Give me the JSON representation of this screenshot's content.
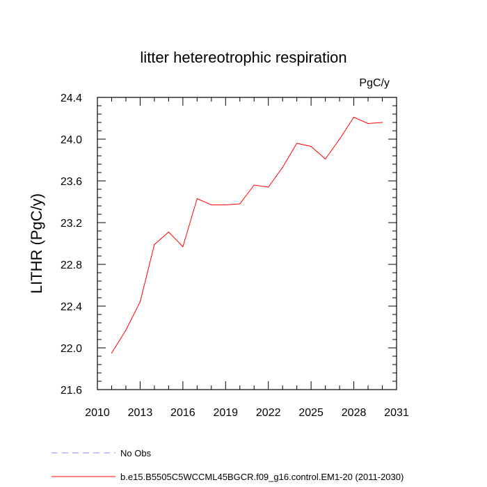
{
  "chart_data": {
    "type": "line",
    "title": "litter hetereotrophic respiration",
    "units": "PgC/y",
    "ylabel": "LITHR  (PgC/y)",
    "xlabel": "",
    "xlim": [
      2010,
      2031
    ],
    "ylim": [
      21.6,
      24.4
    ],
    "xticks": [
      2010,
      2013,
      2016,
      2019,
      2022,
      2025,
      2028,
      2031
    ],
    "yticks": [
      21.6,
      22.0,
      22.4,
      22.8,
      23.2,
      23.6,
      24.0,
      24.4
    ],
    "xtick_labels": [
      "2010",
      "2013",
      "2016",
      "2019",
      "2022",
      "2025",
      "2028",
      "2031"
    ],
    "ytick_labels": [
      "21.6",
      "22.0",
      "22.4",
      "22.8",
      "23.2",
      "23.6",
      "24.0",
      "24.4"
    ],
    "series": [
      {
        "name": "b.e15.B5505C5WCCML45BGCR.f09_g16.control.EM1-20 (2011-2030)",
        "color": "#ff0000",
        "style": "solid",
        "x": [
          2011,
          2012,
          2013,
          2014,
          2015,
          2016,
          2017,
          2018,
          2019,
          2020,
          2021,
          2022,
          2023,
          2024,
          2025,
          2026,
          2027,
          2028,
          2029,
          2030
        ],
        "values": [
          21.95,
          22.17,
          22.44,
          22.99,
          23.11,
          22.97,
          23.43,
          23.37,
          23.37,
          23.38,
          23.56,
          23.54,
          23.73,
          23.96,
          23.93,
          23.81,
          24.0,
          24.21,
          24.15,
          24.16
        ]
      }
    ],
    "legend": [
      {
        "label": "No Obs",
        "color": "#8888ff",
        "style": "dashed"
      },
      {
        "label": "b.e15.B5505C5WCCML45BGCR.f09_g16.control.EM1-20 (2011-2030)",
        "color": "#ff0000",
        "style": "solid"
      }
    ],
    "grid": false,
    "legend_position": "bottom-left"
  }
}
